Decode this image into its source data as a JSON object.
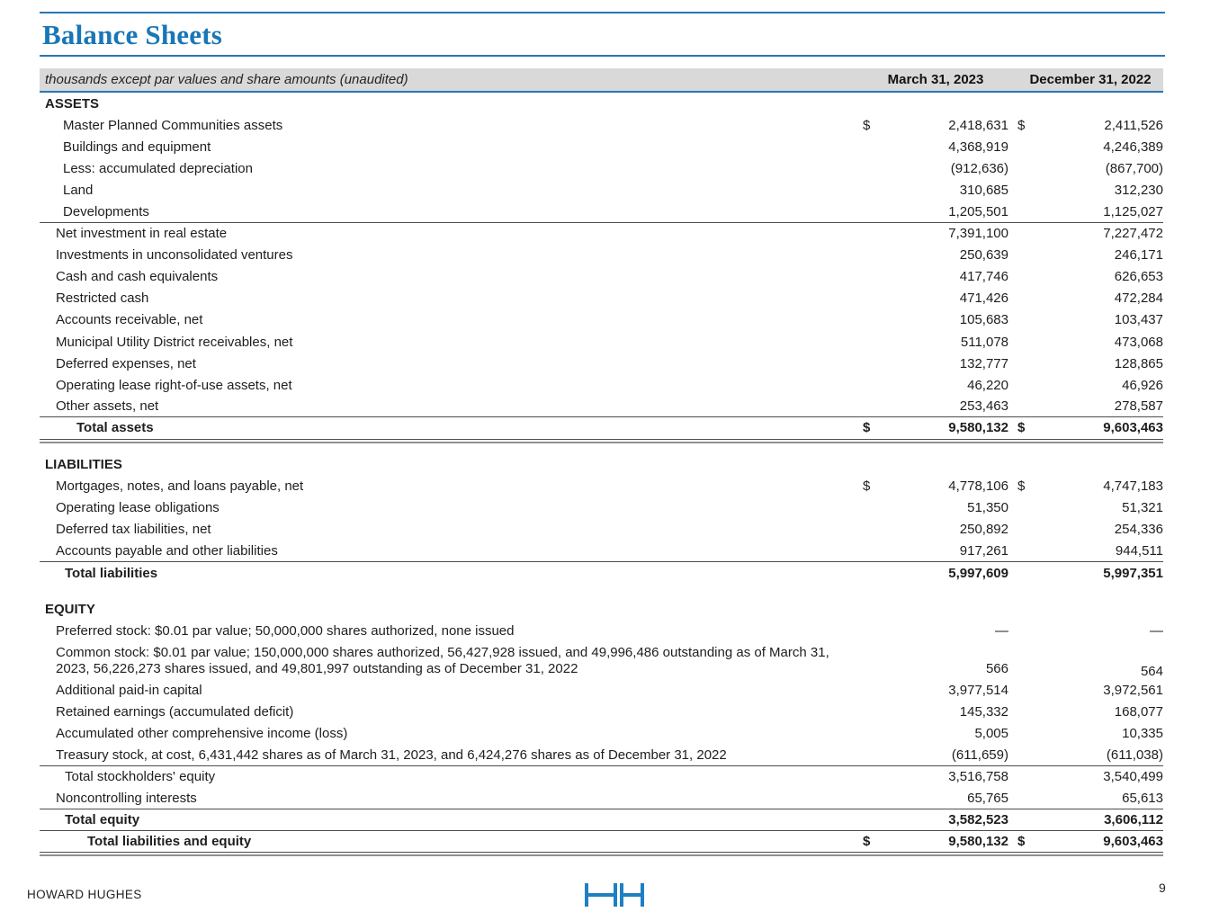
{
  "title": "Balance Sheets",
  "colors": {
    "accent_blue": "#1a76b6",
    "rule_blue": "#2779b4",
    "header_bar_gray": "#d9d9d9",
    "rule_dark": "#4d4d4f",
    "logo_blue": "#1e80c4"
  },
  "table": {
    "note": "thousands except par values and share amounts (unaudited)",
    "columns": [
      "March 31, 2023",
      "December 31, 2022"
    ],
    "rows": [
      {
        "type": "section",
        "label": "ASSETS",
        "indent": 0
      },
      {
        "type": "item",
        "label": "Master Planned Communities assets",
        "indent": 2,
        "d1": "$",
        "v1": "2,418,631",
        "d2": "$",
        "v2": "2,411,526"
      },
      {
        "type": "item",
        "label": "Buildings and equipment",
        "indent": 2,
        "v1": "4,368,919",
        "v2": "4,246,389"
      },
      {
        "type": "item",
        "label": "Less: accumulated depreciation",
        "indent": 2,
        "v1": "(912,636)",
        "v2": "(867,700)"
      },
      {
        "type": "item",
        "label": "Land",
        "indent": 2,
        "v1": "310,685",
        "v2": "312,230"
      },
      {
        "type": "item",
        "label": "Developments",
        "indent": 2,
        "v1": "1,205,501",
        "v2": "1,125,027",
        "line_below": true
      },
      {
        "type": "item",
        "label": "Net investment in real estate",
        "indent": 1,
        "v1": "7,391,100",
        "v2": "7,227,472"
      },
      {
        "type": "item",
        "label": "Investments in unconsolidated ventures",
        "indent": 1,
        "v1": "250,639",
        "v2": "246,171"
      },
      {
        "type": "item",
        "label": "Cash and cash equivalents",
        "indent": 1,
        "v1": "417,746",
        "v2": "626,653"
      },
      {
        "type": "item",
        "label": "Restricted cash",
        "indent": 1,
        "v1": "471,426",
        "v2": "472,284"
      },
      {
        "type": "item",
        "label": "Accounts receivable, net",
        "indent": 1,
        "v1": "105,683",
        "v2": "103,437"
      },
      {
        "type": "item",
        "label": "Municipal Utility District receivables, net",
        "indent": 1,
        "v1": "511,078",
        "v2": "473,068"
      },
      {
        "type": "item",
        "label": "Deferred expenses, net",
        "indent": 1,
        "v1": "132,777",
        "v2": "128,865"
      },
      {
        "type": "item",
        "label": "Operating lease right-of-use assets, net",
        "indent": 1,
        "v1": "46,220",
        "v2": "46,926"
      },
      {
        "type": "item",
        "label": "Other assets, net",
        "indent": 1,
        "v1": "253,463",
        "v2": "278,587",
        "line_below": true
      },
      {
        "type": "total",
        "label": "Total assets",
        "indent": 4,
        "bold": true,
        "d1": "$",
        "v1": "9,580,132",
        "d2": "$",
        "v2": "9,603,463",
        "line_below": true,
        "dbl": true
      },
      {
        "type": "spacer"
      },
      {
        "type": "section",
        "label": "LIABILITIES",
        "indent": 0
      },
      {
        "type": "item",
        "label": "Mortgages, notes, and loans payable, net",
        "indent": 1,
        "d1": "$",
        "v1": "4,778,106",
        "d2": "$",
        "v2": "4,747,183"
      },
      {
        "type": "item",
        "label": "Operating lease obligations",
        "indent": 1,
        "v1": "51,350",
        "v2": "51,321"
      },
      {
        "type": "item",
        "label": "Deferred tax liabilities, net",
        "indent": 1,
        "v1": "250,892",
        "v2": "254,336"
      },
      {
        "type": "item",
        "label": "Accounts payable and other liabilities",
        "indent": 1,
        "v1": "917,261",
        "v2": "944,511",
        "line_below": true
      },
      {
        "type": "total",
        "label": "Total liabilities",
        "indent": 3,
        "bold": true,
        "v1": "5,997,609",
        "v2": "5,997,351"
      },
      {
        "type": "spacer"
      },
      {
        "type": "section",
        "label": "EQUITY",
        "indent": 0
      },
      {
        "type": "item",
        "label": "Preferred stock: $0.01 par value; 50,000,000 shares authorized, none issued",
        "indent": 1,
        "v1": "—",
        "v2": "—"
      },
      {
        "type": "item",
        "label": "Common stock: $0.01 par value; 150,000,000 shares authorized, 56,427,928 issued, and 49,996,486 outstanding as of March 31, 2023,  56,226,273 shares issued, and 49,801,997 outstanding as of December 31, 2022",
        "indent": 1,
        "v1": "566",
        "v2": "564",
        "tall": true
      },
      {
        "type": "item",
        "label": "Additional paid-in capital",
        "indent": 1,
        "v1": "3,977,514",
        "v2": "3,972,561"
      },
      {
        "type": "item",
        "label": "Retained earnings (accumulated deficit)",
        "indent": 1,
        "v1": "145,332",
        "v2": "168,077"
      },
      {
        "type": "item",
        "label": "Accumulated other comprehensive income (loss)",
        "indent": 1,
        "v1": "5,005",
        "v2": "10,335"
      },
      {
        "type": "item",
        "label": "Treasury stock, at cost, 6,431,442 shares as of March 31, 2023, and 6,424,276 shares as of December 31, 2022",
        "indent": 1,
        "v1": "(611,659)",
        "v2": "(611,038)",
        "line_below": true
      },
      {
        "type": "item",
        "label": "Total stockholders' equity",
        "indent": 3,
        "v1": "3,516,758",
        "v2": "3,540,499"
      },
      {
        "type": "item",
        "label": "Noncontrolling interests",
        "indent": 1,
        "v1": "65,765",
        "v2": "65,613",
        "line_below": true
      },
      {
        "type": "total",
        "label": "Total equity",
        "indent": 3,
        "bold": true,
        "v1": "3,582,523",
        "v2": "3,606,112",
        "line_below": true
      },
      {
        "type": "total",
        "label": "Total liabilities and equity",
        "indent": 5,
        "bold": true,
        "d1": "$",
        "v1": "9,580,132",
        "d2": "$",
        "v2": "9,603,463",
        "line_below": true,
        "dbl": true
      }
    ]
  },
  "footer": {
    "company": "HOWARD HUGHES",
    "logo": "hh-logo",
    "page": "9"
  }
}
